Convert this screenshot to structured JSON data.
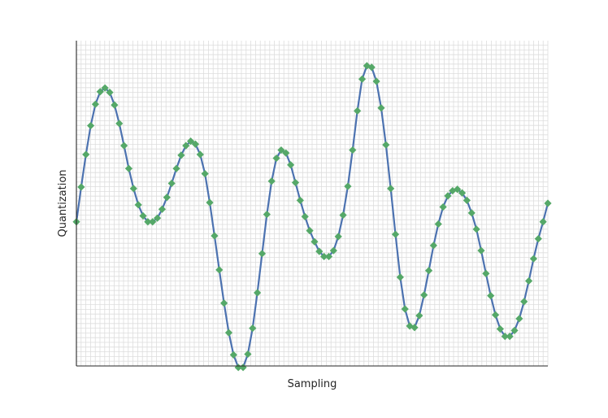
{
  "chart_data": {
    "type": "line",
    "title": "",
    "xlabel": "Sampling",
    "ylabel": "Quantization",
    "xlim": [
      0,
      99
    ],
    "ylim": [
      -1.95,
      2.45
    ],
    "grid": true,
    "x_ticks_shown": false,
    "y_ticks_shown": false,
    "series": [
      {
        "line_color": "#4c72b0",
        "marker_color": "#55a868",
        "marker": "diamond",
        "x": [
          0,
          1,
          2,
          3,
          4,
          5,
          6,
          7,
          8,
          9,
          10,
          11,
          12,
          13,
          14,
          15,
          16,
          17,
          18,
          19,
          20,
          21,
          22,
          23,
          24,
          25,
          26,
          27,
          28,
          29,
          30,
          31,
          32,
          33,
          34,
          35,
          36,
          37,
          38,
          39,
          40,
          41,
          42,
          43,
          44,
          45,
          46,
          47,
          48,
          49,
          50,
          51,
          52,
          53,
          54,
          55,
          56,
          57,
          58,
          59,
          60,
          61,
          62,
          63,
          64,
          65,
          66,
          67,
          68,
          69,
          70,
          71,
          72,
          73,
          74,
          75,
          76,
          77,
          78,
          79,
          80,
          81,
          82,
          83,
          84,
          85,
          86,
          87,
          88,
          89,
          90,
          91,
          92,
          93,
          94,
          95,
          96,
          97,
          98,
          99
        ],
        "y": [
          0.0,
          0.47,
          0.91,
          1.3,
          1.59,
          1.76,
          1.81,
          1.75,
          1.58,
          1.33,
          1.03,
          0.72,
          0.45,
          0.23,
          0.08,
          0.0,
          0.0,
          0.05,
          0.17,
          0.33,
          0.52,
          0.72,
          0.9,
          1.03,
          1.09,
          1.05,
          0.91,
          0.65,
          0.26,
          -0.19,
          -0.65,
          -1.1,
          -1.5,
          -1.8,
          -1.97,
          -1.97,
          -1.79,
          -1.44,
          -0.96,
          -0.43,
          0.1,
          0.55,
          0.86,
          0.97,
          0.93,
          0.77,
          0.53,
          0.29,
          0.07,
          -0.12,
          -0.27,
          -0.4,
          -0.47,
          -0.47,
          -0.39,
          -0.2,
          0.09,
          0.48,
          0.97,
          1.5,
          1.93,
          2.11,
          2.09,
          1.9,
          1.54,
          1.04,
          0.45,
          -0.17,
          -0.75,
          -1.18,
          -1.41,
          -1.43,
          -1.27,
          -0.99,
          -0.66,
          -0.32,
          -0.03,
          0.2,
          0.35,
          0.42,
          0.44,
          0.39,
          0.29,
          0.12,
          -0.1,
          -0.39,
          -0.7,
          -1.0,
          -1.26,
          -1.45,
          -1.55,
          -1.55,
          -1.47,
          -1.31,
          -1.08,
          -0.8,
          -0.5,
          -0.23,
          0.0,
          0.25
        ]
      }
    ]
  }
}
